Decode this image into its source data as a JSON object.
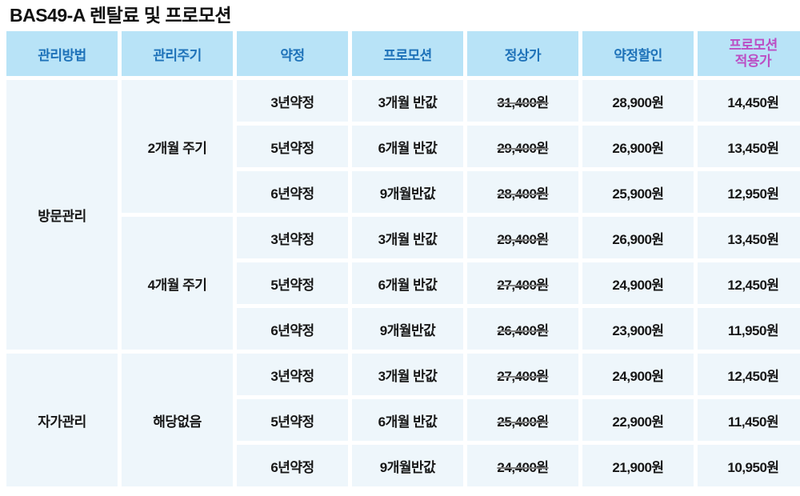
{
  "page_title": "BAS49-A 렌탈료 및 프로모션",
  "colors": {
    "header_bg": "#b8e3f7",
    "header_text": "#1e72b9",
    "promo_header_text": "#bb4fc4",
    "cell_bg": "#eef6fb",
    "body_text": "#161616",
    "promo_price_text": "#bd72d0",
    "strike_line": "#808080"
  },
  "table": {
    "headers": [
      "관리방법",
      "관리주기",
      "약정",
      "프로모션",
      "정상가",
      "약정할인",
      "프로모션\n적용가"
    ],
    "groups": {
      "method_visit": "방문관리",
      "method_self": "자가관리",
      "cycle_2month": "2개월 주기",
      "cycle_4month": "4개월 주기",
      "cycle_none": "해당없음"
    },
    "rows": [
      {
        "contract": "3년약정",
        "promo": "3개월 반값",
        "regular": "31,400원",
        "discount": "28,900원",
        "promo_price": "14,450원"
      },
      {
        "contract": "5년약정",
        "promo": "6개월 반값",
        "regular": "29,400원",
        "discount": "26,900원",
        "promo_price": "13,450원"
      },
      {
        "contract": "6년약정",
        "promo": "9개월반값",
        "regular": "28,400원",
        "discount": "25,900원",
        "promo_price": "12,950원"
      },
      {
        "contract": "3년약정",
        "promo": "3개월 반값",
        "regular": "29,400원",
        "discount": "26,900원",
        "promo_price": "13,450원"
      },
      {
        "contract": "5년약정",
        "promo": "6개월 반값",
        "regular": "27,400원",
        "discount": "24,900원",
        "promo_price": "12,450원"
      },
      {
        "contract": "6년약정",
        "promo": "9개월반값",
        "regular": "26,400원",
        "discount": "23,900원",
        "promo_price": "11,950원"
      },
      {
        "contract": "3년약정",
        "promo": "3개월 반값",
        "regular": "27,400원",
        "discount": "24,900원",
        "promo_price": "12,450원"
      },
      {
        "contract": "5년약정",
        "promo": "6개월 반값",
        "regular": "25,400원",
        "discount": "22,900원",
        "promo_price": "11,450원"
      },
      {
        "contract": "6년약정",
        "promo": "9개월반값",
        "regular": "24,400원",
        "discount": "21,900원",
        "promo_price": "10,950원"
      }
    ]
  }
}
